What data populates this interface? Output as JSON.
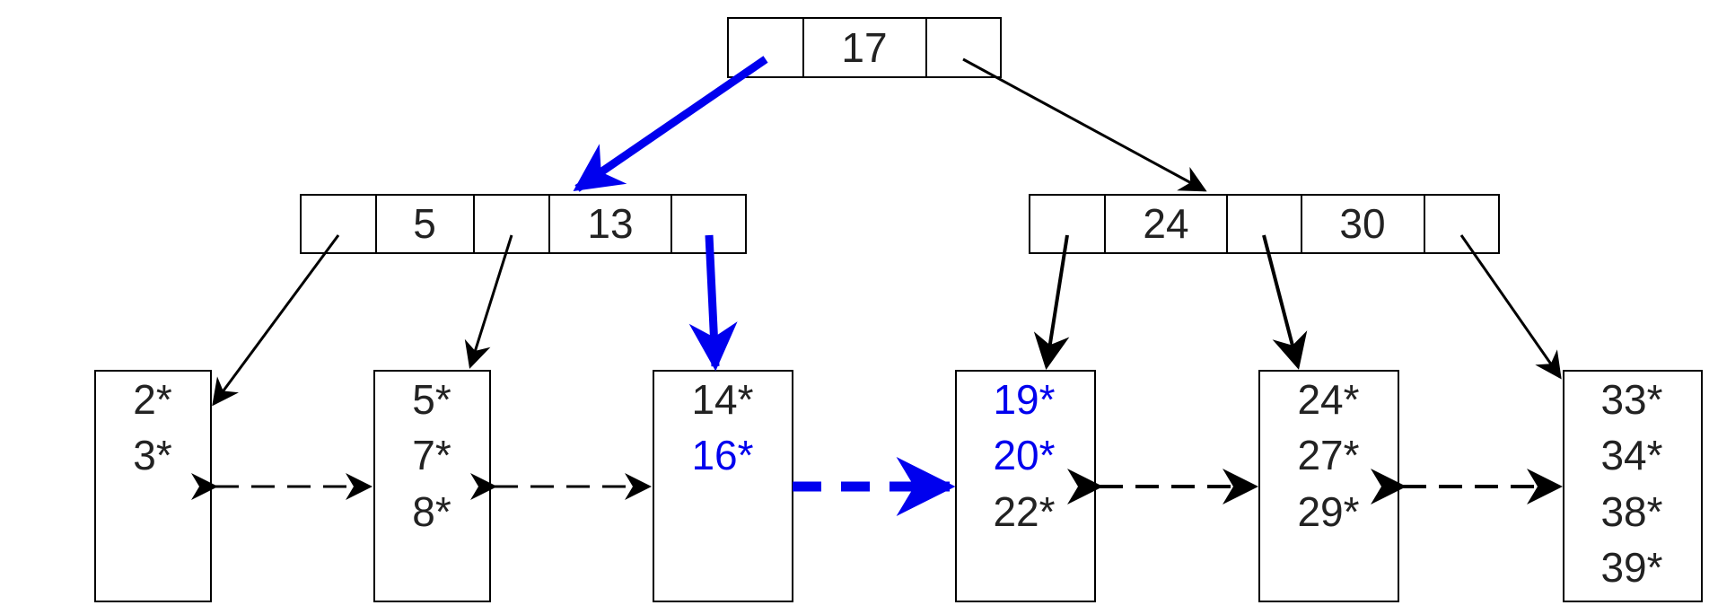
{
  "colors": {
    "default": "#000000",
    "text": "#222222",
    "highlight": "#0000ee"
  },
  "root": {
    "keys": [
      "17"
    ]
  },
  "internal_nodes": [
    {
      "keys": [
        "5",
        "13"
      ]
    },
    {
      "keys": [
        "24",
        "30"
      ]
    }
  ],
  "leaves": [
    {
      "entries": [
        {
          "text": "2*",
          "highlight": false
        },
        {
          "text": "3*",
          "highlight": false
        }
      ]
    },
    {
      "entries": [
        {
          "text": "5*",
          "highlight": false
        },
        {
          "text": "7*",
          "highlight": false
        },
        {
          "text": "8*",
          "highlight": false
        }
      ]
    },
    {
      "entries": [
        {
          "text": "14*",
          "highlight": false
        },
        {
          "text": "16*",
          "highlight": true
        }
      ]
    },
    {
      "entries": [
        {
          "text": "19*",
          "highlight": true
        },
        {
          "text": "20*",
          "highlight": true
        },
        {
          "text": "22*",
          "highlight": false
        }
      ]
    },
    {
      "entries": [
        {
          "text": "24*",
          "highlight": false
        },
        {
          "text": "27*",
          "highlight": false
        },
        {
          "text": "29*",
          "highlight": false
        }
      ]
    },
    {
      "entries": [
        {
          "text": "33*",
          "highlight": false
        },
        {
          "text": "34*",
          "highlight": false
        },
        {
          "text": "38*",
          "highlight": false
        },
        {
          "text": "39*",
          "highlight": false
        }
      ]
    }
  ],
  "search_path": {
    "description_visible": false,
    "highlighted_pointers": [
      "root-to-left-internal",
      "left-internal-to-leaf-3"
    ],
    "highlighted_sibling_link": "leaf-3-to-leaf-4"
  }
}
